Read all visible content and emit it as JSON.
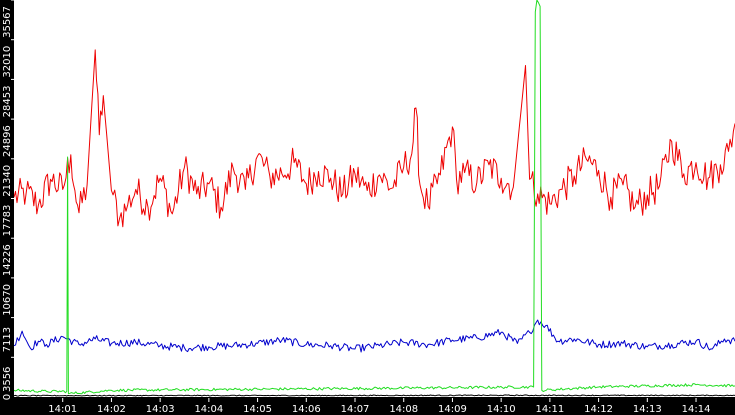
{
  "chart_data": {
    "type": "line",
    "title": "",
    "xlabel": "",
    "ylabel": "",
    "ylim": [
      0,
      35567
    ],
    "grid": false,
    "legend": "none",
    "y_ticks": [
      "3556",
      "7113",
      "10670",
      "14226",
      "17783",
      "21340",
      "24896",
      "28453",
      "32010",
      "35567"
    ],
    "y_tick_values": [
      3556,
      7113,
      10670,
      14226,
      17783,
      21340,
      24896,
      28453,
      32010,
      35567
    ],
    "x_range_minutes": [
      840.0,
      854.8
    ],
    "x_ticks": [
      "14:01",
      "14:02",
      "14:03",
      "14:04",
      "14:05",
      "14:06",
      "14:07",
      "14:08",
      "14:09",
      "14:10",
      "14:11",
      "14:12",
      "14:13",
      "14:14"
    ],
    "series": [
      {
        "color": "#ee0000",
        "points": [
          [
            "14:00:00",
            17900
          ],
          [
            "14:00:15",
            18300
          ],
          [
            "14:00:30",
            17200
          ],
          [
            "14:00:45",
            19500
          ],
          [
            "14:01:00",
            18600
          ],
          [
            "14:01:10",
            21700
          ],
          [
            "14:01:15",
            18500
          ],
          [
            "14:01:20",
            16500
          ],
          [
            "14:01:30",
            19000
          ],
          [
            "14:01:40",
            31100
          ],
          [
            "14:01:45",
            23500
          ],
          [
            "14:01:50",
            27000
          ],
          [
            "14:02:00",
            18500
          ],
          [
            "14:02:10",
            16000
          ],
          [
            "14:02:20",
            17200
          ],
          [
            "14:02:30",
            18600
          ],
          [
            "14:02:45",
            17000
          ],
          [
            "14:03:00",
            19600
          ],
          [
            "14:03:15",
            16400
          ],
          [
            "14:03:30",
            20600
          ],
          [
            "14:03:45",
            18200
          ],
          [
            "14:04:00",
            19100
          ],
          [
            "14:04:15",
            17000
          ],
          [
            "14:04:30",
            20500
          ],
          [
            "14:04:45",
            18600
          ],
          [
            "14:05:00",
            21600
          ],
          [
            "14:05:15",
            19800
          ],
          [
            "14:05:30",
            20000
          ],
          [
            "14:05:45",
            21000
          ],
          [
            "14:06:00",
            19100
          ],
          [
            "14:06:15",
            20200
          ],
          [
            "14:06:30",
            19600
          ],
          [
            "14:06:45",
            18200
          ],
          [
            "14:07:00",
            20000
          ],
          [
            "14:07:15",
            18500
          ],
          [
            "14:07:30",
            19900
          ],
          [
            "14:07:45",
            18700
          ],
          [
            "14:08:00",
            20600
          ],
          [
            "14:08:10",
            21800
          ],
          [
            "14:08:15",
            25900
          ],
          [
            "14:08:20",
            19000
          ],
          [
            "14:08:30",
            17100
          ],
          [
            "14:08:45",
            19900
          ],
          [
            "14:09:00",
            24200
          ],
          [
            "14:09:05",
            19500
          ],
          [
            "14:09:15",
            20100
          ],
          [
            "14:09:30",
            19200
          ],
          [
            "14:09:45",
            20800
          ],
          [
            "14:10:00",
            19600
          ],
          [
            "14:10:15",
            18800
          ],
          [
            "14:10:30",
            29700
          ],
          [
            "14:10:35",
            19500
          ],
          [
            "14:10:45",
            18200
          ],
          [
            "14:11:00",
            17300
          ],
          [
            "14:11:15",
            18600
          ],
          [
            "14:11:30",
            19800
          ],
          [
            "14:11:45",
            21300
          ],
          [
            "14:12:00",
            20300
          ],
          [
            "14:12:15",
            17900
          ],
          [
            "14:12:30",
            19000
          ],
          [
            "14:12:45",
            17000
          ],
          [
            "14:13:00",
            18100
          ],
          [
            "14:13:15",
            18900
          ],
          [
            "14:13:30",
            22900
          ],
          [
            "14:13:45",
            20000
          ],
          [
            "14:14:00",
            21000
          ],
          [
            "14:14:15",
            19600
          ],
          [
            "14:14:30",
            20800
          ],
          [
            "14:14:40",
            22000
          ],
          [
            "14:14:48",
            24500
          ]
        ]
      },
      {
        "color": "#0000cc",
        "points": [
          [
            "14:00:00",
            4600
          ],
          [
            "14:00:10",
            5900
          ],
          [
            "14:00:20",
            4400
          ],
          [
            "14:00:30",
            5000
          ],
          [
            "14:00:40",
            4700
          ],
          [
            "14:01:00",
            5400
          ],
          [
            "14:01:20",
            4700
          ],
          [
            "14:01:40",
            5200
          ],
          [
            "14:02:00",
            4800
          ],
          [
            "14:02:30",
            4900
          ],
          [
            "14:03:00",
            4600
          ],
          [
            "14:03:30",
            4400
          ],
          [
            "14:04:00",
            4500
          ],
          [
            "14:04:30",
            4600
          ],
          [
            "14:05:00",
            4800
          ],
          [
            "14:05:30",
            5100
          ],
          [
            "14:06:00",
            4700
          ],
          [
            "14:06:30",
            4600
          ],
          [
            "14:07:00",
            4300
          ],
          [
            "14:07:30",
            4600
          ],
          [
            "14:08:00",
            4900
          ],
          [
            "14:08:30",
            4700
          ],
          [
            "14:09:00",
            5100
          ],
          [
            "14:09:30",
            5300
          ],
          [
            "14:10:00",
            5800
          ],
          [
            "14:10:20",
            4800
          ],
          [
            "14:10:35",
            5800
          ],
          [
            "14:10:45",
            6900
          ],
          [
            "14:10:55",
            6400
          ],
          [
            "14:11:10",
            5000
          ],
          [
            "14:11:30",
            5200
          ],
          [
            "14:12:00",
            4700
          ],
          [
            "14:12:30",
            4800
          ],
          [
            "14:13:00",
            4500
          ],
          [
            "14:13:30",
            4700
          ],
          [
            "14:14:00",
            5000
          ],
          [
            "14:14:20",
            4300
          ],
          [
            "14:14:35",
            5200
          ],
          [
            "14:14:48",
            5000
          ]
        ]
      },
      {
        "color": "#22dd22",
        "points": [
          [
            "14:00:00",
            600
          ],
          [
            "14:00:40",
            500
          ],
          [
            "14:01:05",
            500
          ],
          [
            "14:01:06",
            21500
          ],
          [
            "14:01:07",
            300
          ],
          [
            "14:02:00",
            600
          ],
          [
            "14:05:00",
            700
          ],
          [
            "14:08:00",
            800
          ],
          [
            "14:10:40",
            900
          ],
          [
            "14:10:42",
            34500
          ],
          [
            "14:10:44",
            35567
          ],
          [
            "14:10:48",
            35000
          ],
          [
            "14:10:50",
            600
          ],
          [
            "14:12:00",
            900
          ],
          [
            "14:14:00",
            1100
          ],
          [
            "14:14:48",
            1000
          ]
        ]
      },
      {
        "color": "#000000",
        "points": [
          [
            "14:00:00",
            120
          ],
          [
            "14:05:00",
            130
          ],
          [
            "14:10:00",
            150
          ],
          [
            "14:14:48",
            140
          ]
        ]
      }
    ]
  }
}
